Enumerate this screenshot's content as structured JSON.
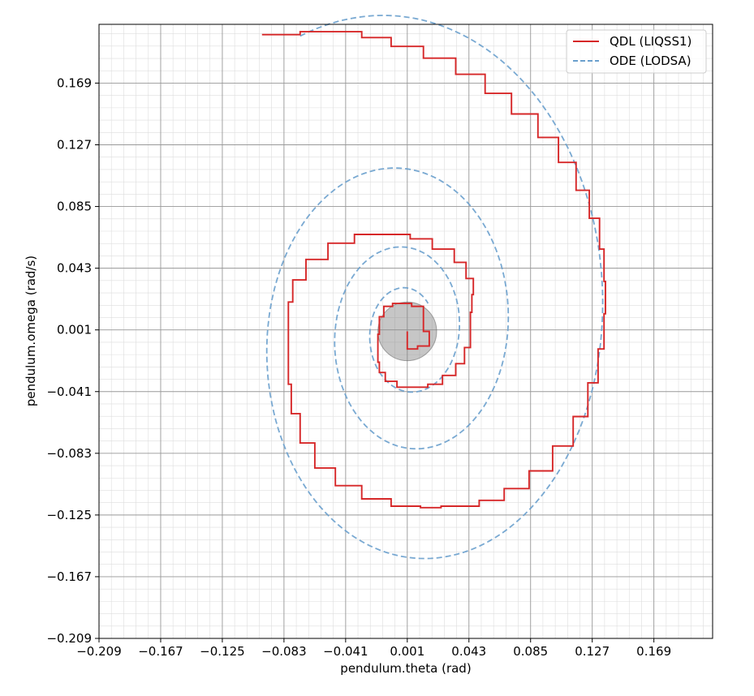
{
  "chart_data": {
    "type": "line",
    "title": "",
    "xlabel": "pendulum.theta (rad)",
    "ylabel": "pendulum.omega (rad/s)",
    "xlim": [
      -0.209,
      0.209
    ],
    "ylim": [
      -0.209,
      0.209
    ],
    "xticks": [
      "−0.209",
      "−0.167",
      "−0.125",
      "−0.083",
      "−0.041",
      "0.001",
      "0.043",
      "0.085",
      "0.127",
      "0.169"
    ],
    "yticks": [
      "−0.209",
      "−0.167",
      "−0.125",
      "−0.083",
      "−0.041",
      "0.001",
      "0.043",
      "0.085",
      "0.127",
      "0.169"
    ],
    "xtick_values": [
      -0.209,
      -0.167,
      -0.125,
      -0.083,
      -0.041,
      0.001,
      0.043,
      0.085,
      0.127,
      0.169
    ],
    "ytick_values": [
      -0.209,
      -0.167,
      -0.125,
      -0.083,
      -0.041,
      0.001,
      0.043,
      0.085,
      0.127,
      0.169
    ],
    "grid": "major and minor",
    "legend_position": "top-right",
    "equilibrium_marker": {
      "x": 0.001,
      "y": 0.0,
      "radius": 0.02,
      "color": "#808080"
    },
    "series": [
      {
        "name": "QDL (LIQSS1)",
        "style": "solid-stepped",
        "color": "#d62728",
        "points": [
          [
            -0.098,
            0.202
          ],
          [
            -0.072,
            0.204
          ],
          [
            -0.052,
            0.204
          ],
          [
            -0.03,
            0.2
          ],
          [
            -0.01,
            0.194
          ],
          [
            0.012,
            0.186
          ],
          [
            0.034,
            0.175
          ],
          [
            0.054,
            0.162
          ],
          [
            0.072,
            0.148
          ],
          [
            0.09,
            0.132
          ],
          [
            0.104,
            0.115
          ],
          [
            0.116,
            0.096
          ],
          [
            0.125,
            0.077
          ],
          [
            0.132,
            0.056
          ],
          [
            0.135,
            0.034
          ],
          [
            0.136,
            0.012
          ],
          [
            0.135,
            -0.012
          ],
          [
            0.131,
            -0.035
          ],
          [
            0.124,
            -0.058
          ],
          [
            0.114,
            -0.078
          ],
          [
            0.1,
            -0.095
          ],
          [
            0.084,
            -0.107
          ],
          [
            0.067,
            -0.115
          ],
          [
            0.05,
            -0.119
          ],
          [
            0.024,
            -0.12
          ],
          [
            0.01,
            -0.119
          ],
          [
            -0.01,
            -0.114
          ],
          [
            -0.03,
            -0.105
          ],
          [
            -0.048,
            -0.093
          ],
          [
            -0.062,
            -0.076
          ],
          [
            -0.072,
            -0.056
          ],
          [
            -0.078,
            -0.036
          ],
          [
            -0.08,
            -0.016
          ],
          [
            -0.08,
            0.007
          ],
          [
            -0.08,
            0.02
          ],
          [
            -0.077,
            0.035
          ],
          [
            -0.068,
            0.049
          ],
          [
            -0.053,
            0.06
          ],
          [
            -0.035,
            0.066
          ],
          [
            -0.015,
            0.066
          ],
          [
            0.003,
            0.063
          ],
          [
            0.018,
            0.056
          ],
          [
            0.033,
            0.047
          ],
          [
            0.041,
            0.036
          ],
          [
            0.046,
            0.025
          ],
          [
            0.045,
            0.013
          ],
          [
            0.044,
            0.001
          ],
          [
            0.044,
            -0.011
          ],
          [
            0.04,
            -0.022
          ],
          [
            0.034,
            -0.03
          ],
          [
            0.025,
            -0.036
          ],
          [
            0.015,
            -0.038
          ],
          [
            0.005,
            -0.038
          ],
          [
            -0.006,
            -0.034
          ],
          [
            -0.014,
            -0.028
          ],
          [
            -0.018,
            -0.021
          ],
          [
            -0.019,
            -0.012
          ],
          [
            -0.019,
            -0.002
          ],
          [
            -0.018,
            0.01
          ],
          [
            -0.015,
            0.017
          ],
          [
            -0.009,
            0.019
          ],
          [
            -0.002,
            0.019
          ],
          [
            0.004,
            0.017
          ],
          [
            0.012,
            0.012
          ],
          [
            0.012,
            0.0
          ],
          [
            0.016,
            -0.01
          ],
          [
            0.008,
            -0.012
          ],
          [
            0.001,
            0.0
          ]
        ]
      },
      {
        "name": "ODE (LODSA)",
        "style": "dashed-smooth",
        "color": "#6aa0cd",
        "spiral": {
          "theta0": -0.099,
          "omega0": 0.201,
          "zeta": 0.1,
          "turns": 3.2
        }
      }
    ]
  }
}
